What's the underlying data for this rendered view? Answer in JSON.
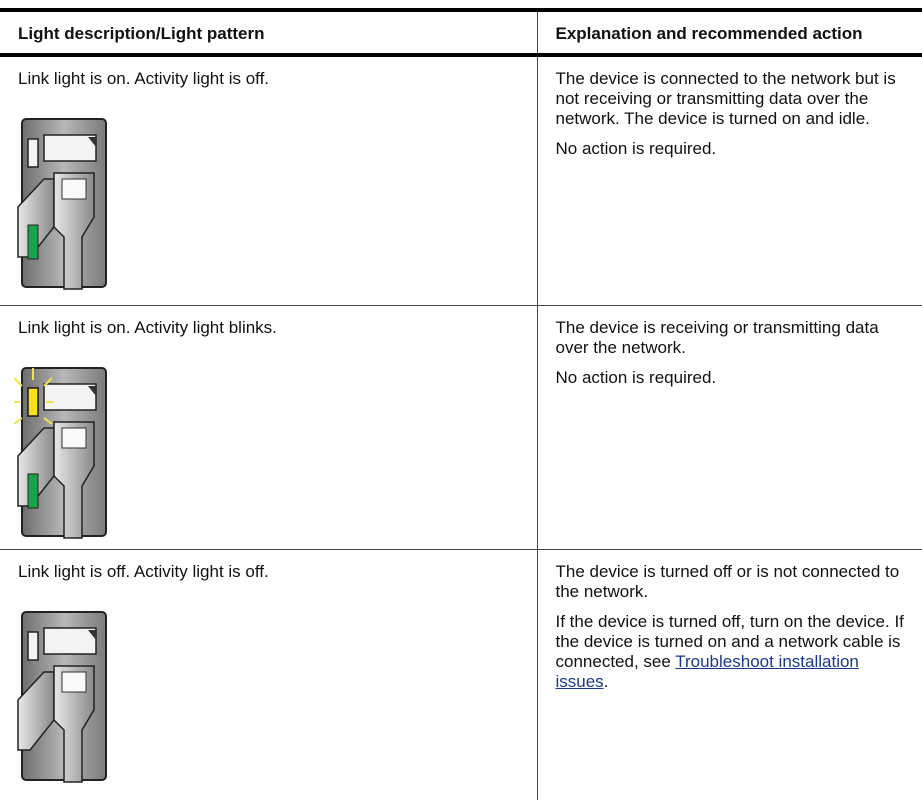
{
  "table": {
    "headers": [
      "Light description/Light pattern",
      "Explanation and recommended action"
    ],
    "rows": [
      {
        "description": "Link light is on. Activity light is off.",
        "paragraphs": [
          "The device is connected to the network but is not receiving or transmitting data over the network. The device is turned on and idle.",
          "No action is required."
        ]
      },
      {
        "description": "Link light is on. Activity light blinks.",
        "paragraphs": [
          "The device is receiving or transmitting data over the network.",
          "No action is required."
        ]
      },
      {
        "description": "Link light is off. Activity light is off.",
        "paragraphs": [
          "The device is turned off or is not connected to the network.",
          "If the device is turned off, turn on the device. If the device is turned on and a network cable is connected, see"
        ],
        "link": "Troubleshoot installation issues",
        "after_link": "."
      }
    ]
  }
}
